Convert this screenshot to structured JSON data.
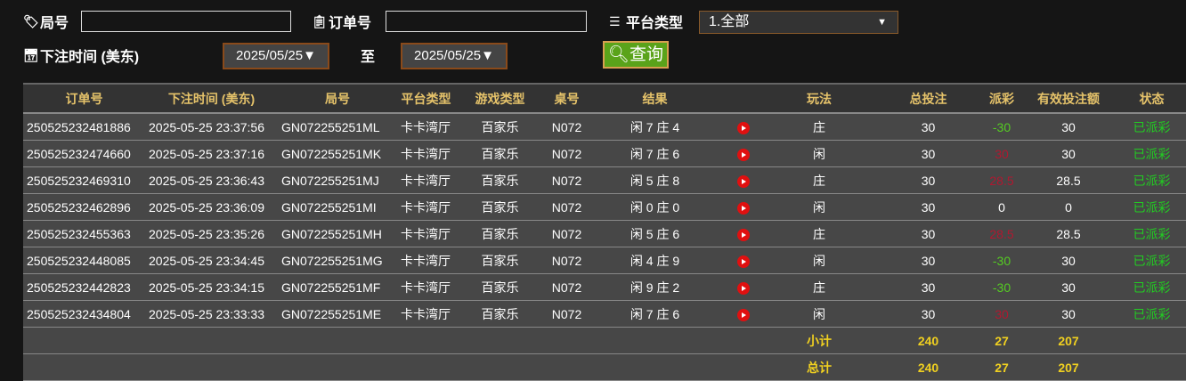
{
  "filters": {
    "round_label": "局号",
    "round_value": "",
    "order_label": "订单号",
    "order_value": "",
    "platform_label": "平台类型",
    "platform_value": "1.全部",
    "time_label": "下注时间 (美东)",
    "date_from": "2025/05/25▼",
    "to_label": "至",
    "date_to": "2025/05/25▼",
    "query_label": "查询"
  },
  "table": {
    "headers": [
      "订单号",
      "下注时间 (美东)",
      "局号",
      "平台类型",
      "游戏类型",
      "桌号",
      "结果",
      "",
      "玩法",
      "总投注",
      "派彩",
      "有效投注额",
      "状态"
    ],
    "rows": [
      {
        "order": "250525232481886",
        "time": "2025-05-25 23:37:56",
        "round": "GN072255251ML",
        "platform": "卡卡湾厅",
        "game": "百家乐",
        "table": "N072",
        "result": "闲 7 庄 4",
        "play": "庄",
        "bet": "30",
        "payout": "-30",
        "payout_color": "#55cc22",
        "valid": "30",
        "status": "已派彩"
      },
      {
        "order": "250525232474660",
        "time": "2025-05-25 23:37:16",
        "round": "GN072255251MK",
        "platform": "卡卡湾厅",
        "game": "百家乐",
        "table": "N072",
        "result": "闲 7 庄 6",
        "play": "闲",
        "bet": "30",
        "payout": "30",
        "payout_color": "#b01830",
        "valid": "30",
        "status": "已派彩"
      },
      {
        "order": "250525232469310",
        "time": "2025-05-25 23:36:43",
        "round": "GN072255251MJ",
        "platform": "卡卡湾厅",
        "game": "百家乐",
        "table": "N072",
        "result": "闲 5 庄 8",
        "play": "庄",
        "bet": "30",
        "payout": "28.5",
        "payout_color": "#b01830",
        "valid": "28.5",
        "status": "已派彩"
      },
      {
        "order": "250525232462896",
        "time": "2025-05-25 23:36:09",
        "round": "GN072255251MI",
        "platform": "卡卡湾厅",
        "game": "百家乐",
        "table": "N072",
        "result": "闲 0 庄 0",
        "play": "闲",
        "bet": "30",
        "payout": "0",
        "payout_color": "#ffffff",
        "valid": "0",
        "status": "已派彩"
      },
      {
        "order": "250525232455363",
        "time": "2025-05-25 23:35:26",
        "round": "GN072255251MH",
        "platform": "卡卡湾厅",
        "game": "百家乐",
        "table": "N072",
        "result": "闲 5 庄 6",
        "play": "庄",
        "bet": "30",
        "payout": "28.5",
        "payout_color": "#b01830",
        "valid": "28.5",
        "status": "已派彩"
      },
      {
        "order": "250525232448085",
        "time": "2025-05-25 23:34:45",
        "round": "GN072255251MG",
        "platform": "卡卡湾厅",
        "game": "百家乐",
        "table": "N072",
        "result": "闲 4 庄 9",
        "play": "闲",
        "bet": "30",
        "payout": "-30",
        "payout_color": "#55cc22",
        "valid": "30",
        "status": "已派彩"
      },
      {
        "order": "250525232442823",
        "time": "2025-05-25 23:34:15",
        "round": "GN072255251MF",
        "platform": "卡卡湾厅",
        "game": "百家乐",
        "table": "N072",
        "result": "闲 9 庄 2",
        "play": "庄",
        "bet": "30",
        "payout": "-30",
        "payout_color": "#55cc22",
        "valid": "30",
        "status": "已派彩"
      },
      {
        "order": "250525232434804",
        "time": "2025-05-25 23:33:33",
        "round": "GN072255251ME",
        "platform": "卡卡湾厅",
        "game": "百家乐",
        "table": "N072",
        "result": "闲 7 庄 6",
        "play": "闲",
        "bet": "30",
        "payout": "30",
        "payout_color": "#b01830",
        "valid": "30",
        "status": "已派彩"
      }
    ],
    "subtotal": {
      "label": "小计",
      "bet": "240",
      "payout": "27",
      "valid": "207"
    },
    "total": {
      "label": "总计",
      "bet": "240",
      "payout": "27",
      "valid": "207"
    },
    "status_color": "#22cc22"
  }
}
